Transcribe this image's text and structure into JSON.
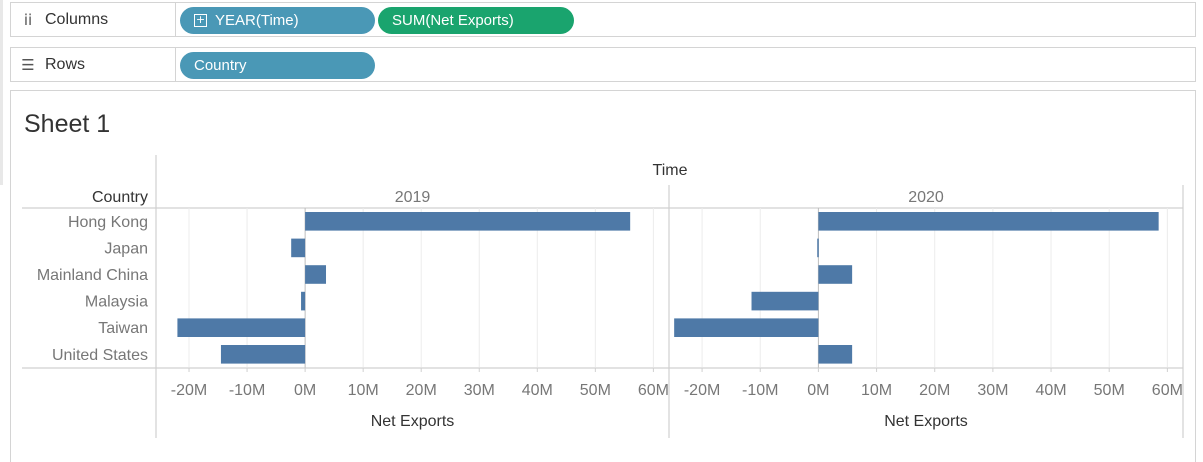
{
  "shelves": {
    "columns": {
      "label": "Columns",
      "icon": "columns-shelf-icon",
      "pills": [
        {
          "label": "YEAR(Time)",
          "color": "#4a98b6"
        },
        {
          "label": "SUM(Net Exports)",
          "color": "#1aa46e"
        }
      ]
    },
    "rows": {
      "label": "Rows",
      "icon": "rows-shelf-icon",
      "pills": [
        {
          "label": "Country",
          "color": "#4a98b6"
        }
      ]
    }
  },
  "sheet": {
    "title": "Sheet 1"
  },
  "chart_data": {
    "type": "bar",
    "orientation": "horizontal",
    "column_header": "Time",
    "row_header": "Country",
    "categories": [
      "Hong Kong",
      "Japan",
      "Mainland China",
      "Malaysia",
      "Taiwan",
      "United States"
    ],
    "panels": [
      {
        "name": "2019",
        "values": [
          56,
          -2.4,
          3.6,
          -0.7,
          -22,
          -14.5
        ]
      },
      {
        "name": "2020",
        "values": [
          58.5,
          -0.2,
          5.8,
          -11.5,
          -24.8,
          5.8
        ]
      }
    ],
    "xlabel": "Net Exports",
    "ylabel": "",
    "xlim": [
      -25,
      62
    ],
    "ticks": [
      -20,
      -10,
      0,
      10,
      20,
      30,
      40,
      50,
      60
    ],
    "tick_labels": [
      "-20M",
      "-10M",
      "0M",
      "10M",
      "20M",
      "30M",
      "40M",
      "50M",
      "60M"
    ],
    "unit": "M",
    "bar_color": "#4e79a7",
    "grid": true,
    "legend": "none"
  }
}
